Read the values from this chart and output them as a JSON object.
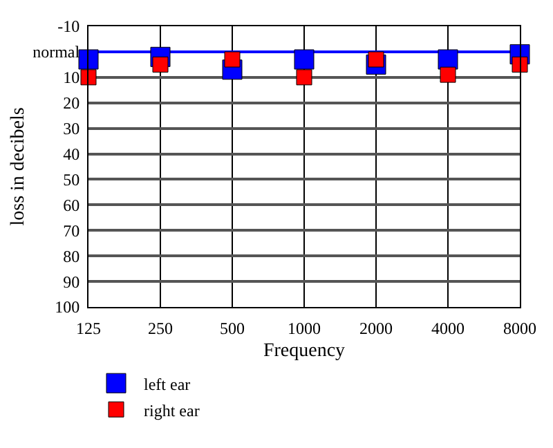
{
  "chart_data": {
    "type": "scatter",
    "categories": [
      "125",
      "250",
      "500",
      "1000",
      "2000",
      "4000",
      "8000"
    ],
    "series": [
      {
        "name": "left ear",
        "color": "#0000ff",
        "values": [
          3,
          2,
          7,
          3,
          5,
          3,
          1
        ]
      },
      {
        "name": "right ear",
        "color": "#ff0000",
        "values": [
          10,
          5,
          3,
          10,
          3,
          9,
          5
        ]
      }
    ],
    "xlabel": "Frequency",
    "ylabel": "loss in decibels",
    "ylim": [
      100,
      -10
    ],
    "yticks": [
      -10,
      {
        "value": 0,
        "label": "normal"
      },
      10,
      20,
      30,
      40,
      50,
      60,
      70,
      80,
      90,
      100
    ],
    "ref_lines": [
      {
        "axis": "y",
        "value": 0,
        "color": "#0000ff"
      }
    ],
    "grid": true,
    "legend": "bottom left",
    "marker": "square"
  }
}
